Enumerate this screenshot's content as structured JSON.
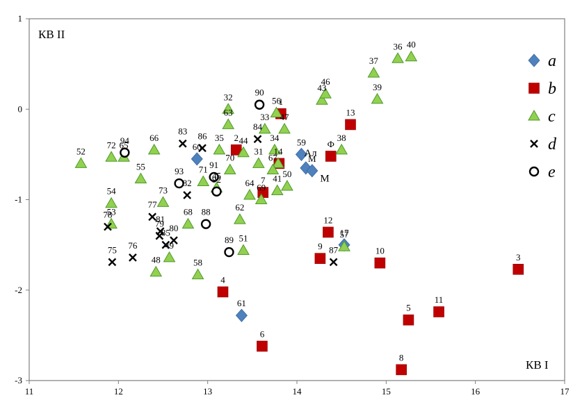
{
  "chart_data": {
    "type": "scatter",
    "xlabel": "КВ I",
    "ylabel": "КВ II",
    "xlim": [
      11,
      17
    ],
    "ylim": [
      -3,
      1
    ],
    "xticks": [
      11,
      12,
      13,
      14,
      15,
      16,
      17
    ],
    "yticks": [
      1,
      0,
      -1,
      -2,
      -3
    ],
    "grid": false,
    "legend_position": "top-right",
    "colors": {
      "a": "#4f81bd",
      "b": "#c00000",
      "c_fill": "#92d050",
      "c_stroke": "#4e9a2a",
      "d": "#000000",
      "e": "#000000",
      "frame": "#7f7f7f"
    },
    "series": [
      {
        "name": "a",
        "marker": "diamond",
        "points": [
          {
            "x": 12.88,
            "y": -0.55,
            "label": "60"
          },
          {
            "x": 14.05,
            "y": -0.5,
            "label": "59"
          },
          {
            "x": 14.1,
            "y": -0.65,
            "label": ""
          },
          {
            "x": 14.17,
            "y": -0.68,
            "label": "M"
          },
          {
            "x": 14.53,
            "y": -1.5,
            "label": "17"
          },
          {
            "x": 13.38,
            "y": -2.28,
            "label": "61"
          }
        ]
      },
      {
        "name": "b",
        "marker": "square",
        "points": [
          {
            "x": 13.32,
            "y": -0.45,
            "label": "2"
          },
          {
            "x": 13.82,
            "y": -0.05,
            "label": "1"
          },
          {
            "x": 13.8,
            "y": -0.6,
            "label": ""
          },
          {
            "x": 13.62,
            "y": -0.92,
            "label": "7"
          },
          {
            "x": 14.38,
            "y": -0.52,
            "label": "Ф"
          },
          {
            "x": 14.6,
            "y": -0.17,
            "label": "13"
          },
          {
            "x": 14.35,
            "y": -1.36,
            "label": "12"
          },
          {
            "x": 14.26,
            "y": -1.65,
            "label": "9"
          },
          {
            "x": 14.93,
            "y": -1.7,
            "label": "10"
          },
          {
            "x": 13.17,
            "y": -2.02,
            "label": "4"
          },
          {
            "x": 13.61,
            "y": -2.62,
            "label": "6"
          },
          {
            "x": 15.25,
            "y": -2.33,
            "label": "5"
          },
          {
            "x": 15.59,
            "y": -2.24,
            "label": "11"
          },
          {
            "x": 15.17,
            "y": -2.88,
            "label": "8"
          },
          {
            "x": 16.48,
            "y": -1.77,
            "label": "3"
          }
        ]
      },
      {
        "name": "c",
        "marker": "triangle",
        "points": [
          {
            "x": 11.58,
            "y": -0.6,
            "label": "52"
          },
          {
            "x": 11.92,
            "y": -0.53,
            "label": "72"
          },
          {
            "x": 12.06,
            "y": -0.53,
            "label": "65"
          },
          {
            "x": 12.4,
            "y": -0.45,
            "label": "66"
          },
          {
            "x": 12.25,
            "y": -0.77,
            "label": "55"
          },
          {
            "x": 11.92,
            "y": -1.04,
            "label": "54"
          },
          {
            "x": 11.92,
            "y": -1.27,
            "label": "53"
          },
          {
            "x": 12.5,
            "y": -1.03,
            "label": "73"
          },
          {
            "x": 12.78,
            "y": -1.27,
            "label": "68"
          },
          {
            "x": 12.57,
            "y": -1.64,
            "label": "49"
          },
          {
            "x": 12.42,
            "y": -1.8,
            "label": "48"
          },
          {
            "x": 12.89,
            "y": -1.83,
            "label": "58"
          },
          {
            "x": 12.95,
            "y": -0.8,
            "label": "71"
          },
          {
            "x": 13.13,
            "y": -0.45,
            "label": "35"
          },
          {
            "x": 13.23,
            "y": -0.17,
            "label": "63"
          },
          {
            "x": 13.23,
            "y": 0.0,
            "label": "32"
          },
          {
            "x": 13.25,
            "y": -0.67,
            "label": "70"
          },
          {
            "x": 13.1,
            "y": -0.87,
            "label": "45"
          },
          {
            "x": 13.4,
            "y": -0.48,
            "label": "44"
          },
          {
            "x": 13.57,
            "y": -0.6,
            "label": "31"
          },
          {
            "x": 13.47,
            "y": -0.95,
            "label": "64"
          },
          {
            "x": 13.36,
            "y": -1.22,
            "label": "62"
          },
          {
            "x": 13.4,
            "y": -1.56,
            "label": "51"
          },
          {
            "x": 13.6,
            "y": -1.0,
            "label": "69"
          },
          {
            "x": 13.64,
            "y": -0.22,
            "label": "33"
          },
          {
            "x": 13.77,
            "y": -0.04,
            "label": "56"
          },
          {
            "x": 13.86,
            "y": -0.22,
            "label": "47"
          },
          {
            "x": 13.75,
            "y": -0.45,
            "label": "34"
          },
          {
            "x": 13.79,
            "y": -0.6,
            "label": "14"
          },
          {
            "x": 13.73,
            "y": -0.67,
            "label": "67"
          },
          {
            "x": 13.78,
            "y": -0.9,
            "label": "41"
          },
          {
            "x": 13.89,
            "y": -0.85,
            "label": "50"
          },
          {
            "x": 14.28,
            "y": 0.1,
            "label": "43"
          },
          {
            "x": 14.32,
            "y": 0.17,
            "label": "46"
          },
          {
            "x": 14.5,
            "y": -0.45,
            "label": "38"
          },
          {
            "x": 14.53,
            "y": -1.52,
            "label": "57"
          },
          {
            "x": 14.86,
            "y": 0.4,
            "label": "37"
          },
          {
            "x": 14.9,
            "y": 0.11,
            "label": "39"
          },
          {
            "x": 15.13,
            "y": 0.56,
            "label": "36"
          },
          {
            "x": 15.28,
            "y": 0.58,
            "label": "40"
          }
        ]
      },
      {
        "name": "d",
        "marker": "x",
        "points": [
          {
            "x": 12.72,
            "y": -0.38,
            "label": "83"
          },
          {
            "x": 12.94,
            "y": -0.43,
            "label": "86"
          },
          {
            "x": 12.77,
            "y": -0.95,
            "label": "82"
          },
          {
            "x": 12.38,
            "y": -1.19,
            "label": "77"
          },
          {
            "x": 12.47,
            "y": -1.35,
            "label": "81"
          },
          {
            "x": 12.46,
            "y": -1.4,
            "label": "79"
          },
          {
            "x": 12.53,
            "y": -1.5,
            "label": "85"
          },
          {
            "x": 12.62,
            "y": -1.45,
            "label": "80"
          },
          {
            "x": 11.88,
            "y": -1.3,
            "label": "78"
          },
          {
            "x": 11.93,
            "y": -1.69,
            "label": "75"
          },
          {
            "x": 12.16,
            "y": -1.64,
            "label": "76"
          },
          {
            "x": 13.56,
            "y": -0.33,
            "label": "84"
          },
          {
            "x": 14.41,
            "y": -1.69,
            "label": "87"
          }
        ]
      },
      {
        "name": "e",
        "marker": "circle",
        "points": [
          {
            "x": 12.07,
            "y": -0.48,
            "label": "94"
          },
          {
            "x": 12.68,
            "y": -0.82,
            "label": "93"
          },
          {
            "x": 13.07,
            "y": -0.75,
            "label": "91"
          },
          {
            "x": 13.1,
            "y": -0.91,
            "label": "92"
          },
          {
            "x": 12.98,
            "y": -1.27,
            "label": "88"
          },
          {
            "x": 13.24,
            "y": -1.58,
            "label": "89"
          },
          {
            "x": 13.58,
            "y": 0.05,
            "label": "90"
          }
        ]
      }
    ],
    "annotations": [
      {
        "text": "Ал",
        "x": 14.08,
        "y": -0.52
      },
      {
        "text": "M",
        "x": 14.26,
        "y": -0.8
      }
    ]
  }
}
